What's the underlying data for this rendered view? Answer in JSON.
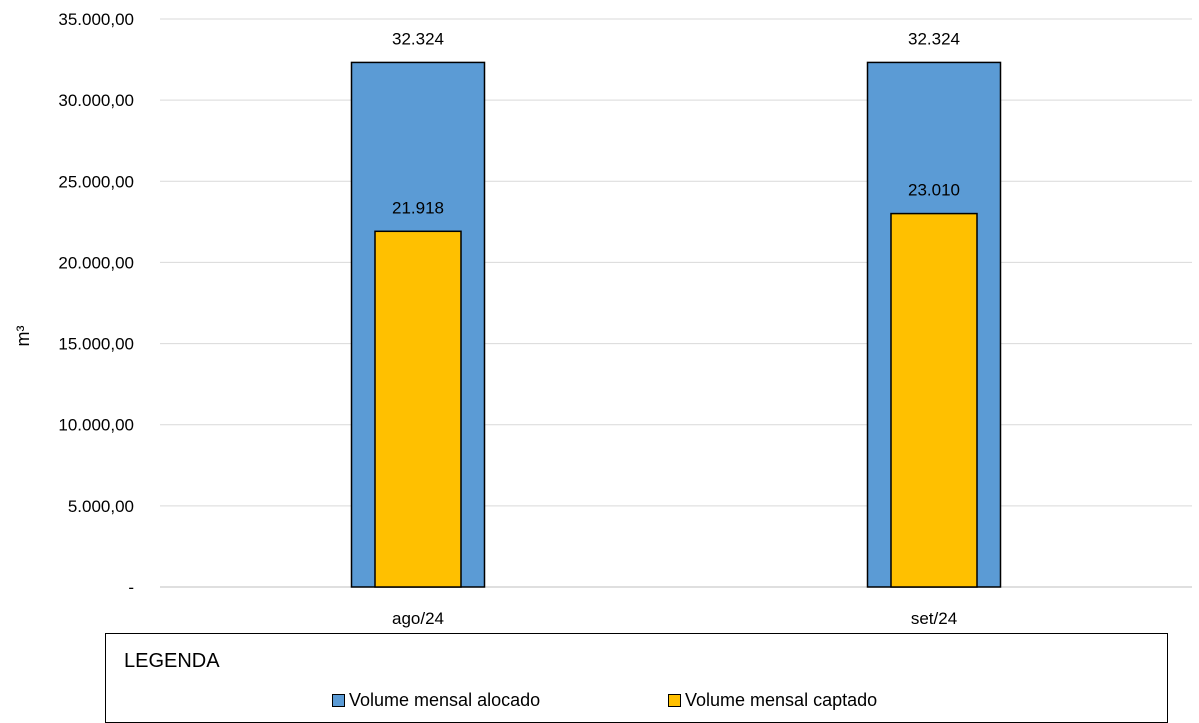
{
  "chart_data": {
    "type": "bar",
    "categories": [
      "ago/24",
      "set/24"
    ],
    "series": [
      {
        "name": "Volume mensal alocado",
        "values": [
          32324,
          32324
        ],
        "labels": [
          "32.324",
          "32.324"
        ],
        "color": "#5B9BD5"
      },
      {
        "name": "Volume mensal captado",
        "values": [
          21918,
          23010
        ],
        "labels": [
          "21.918",
          "23.010"
        ],
        "color": "#FFC000"
      }
    ],
    "ylabel": "m³",
    "ylim": [
      0,
      35000
    ],
    "yticks": [
      {
        "value": 0,
        "label": "-"
      },
      {
        "value": 5000,
        "label": "5.000,00"
      },
      {
        "value": 10000,
        "label": "10.000,00"
      },
      {
        "value": 15000,
        "label": "15.000,00"
      },
      {
        "value": 20000,
        "label": "20.000,00"
      },
      {
        "value": 25000,
        "label": "25.000,00"
      },
      {
        "value": 30000,
        "label": "30.000,00"
      },
      {
        "value": 35000,
        "label": "35.000,00"
      }
    ],
    "grid": true,
    "legend_position": "bottom"
  },
  "legend": {
    "title": "LEGENDA",
    "items": [
      {
        "label": "Volume mensal alocado",
        "color": "#5B9BD5"
      },
      {
        "label": "Volume mensal captado",
        "color": "#FFC000"
      }
    ]
  }
}
